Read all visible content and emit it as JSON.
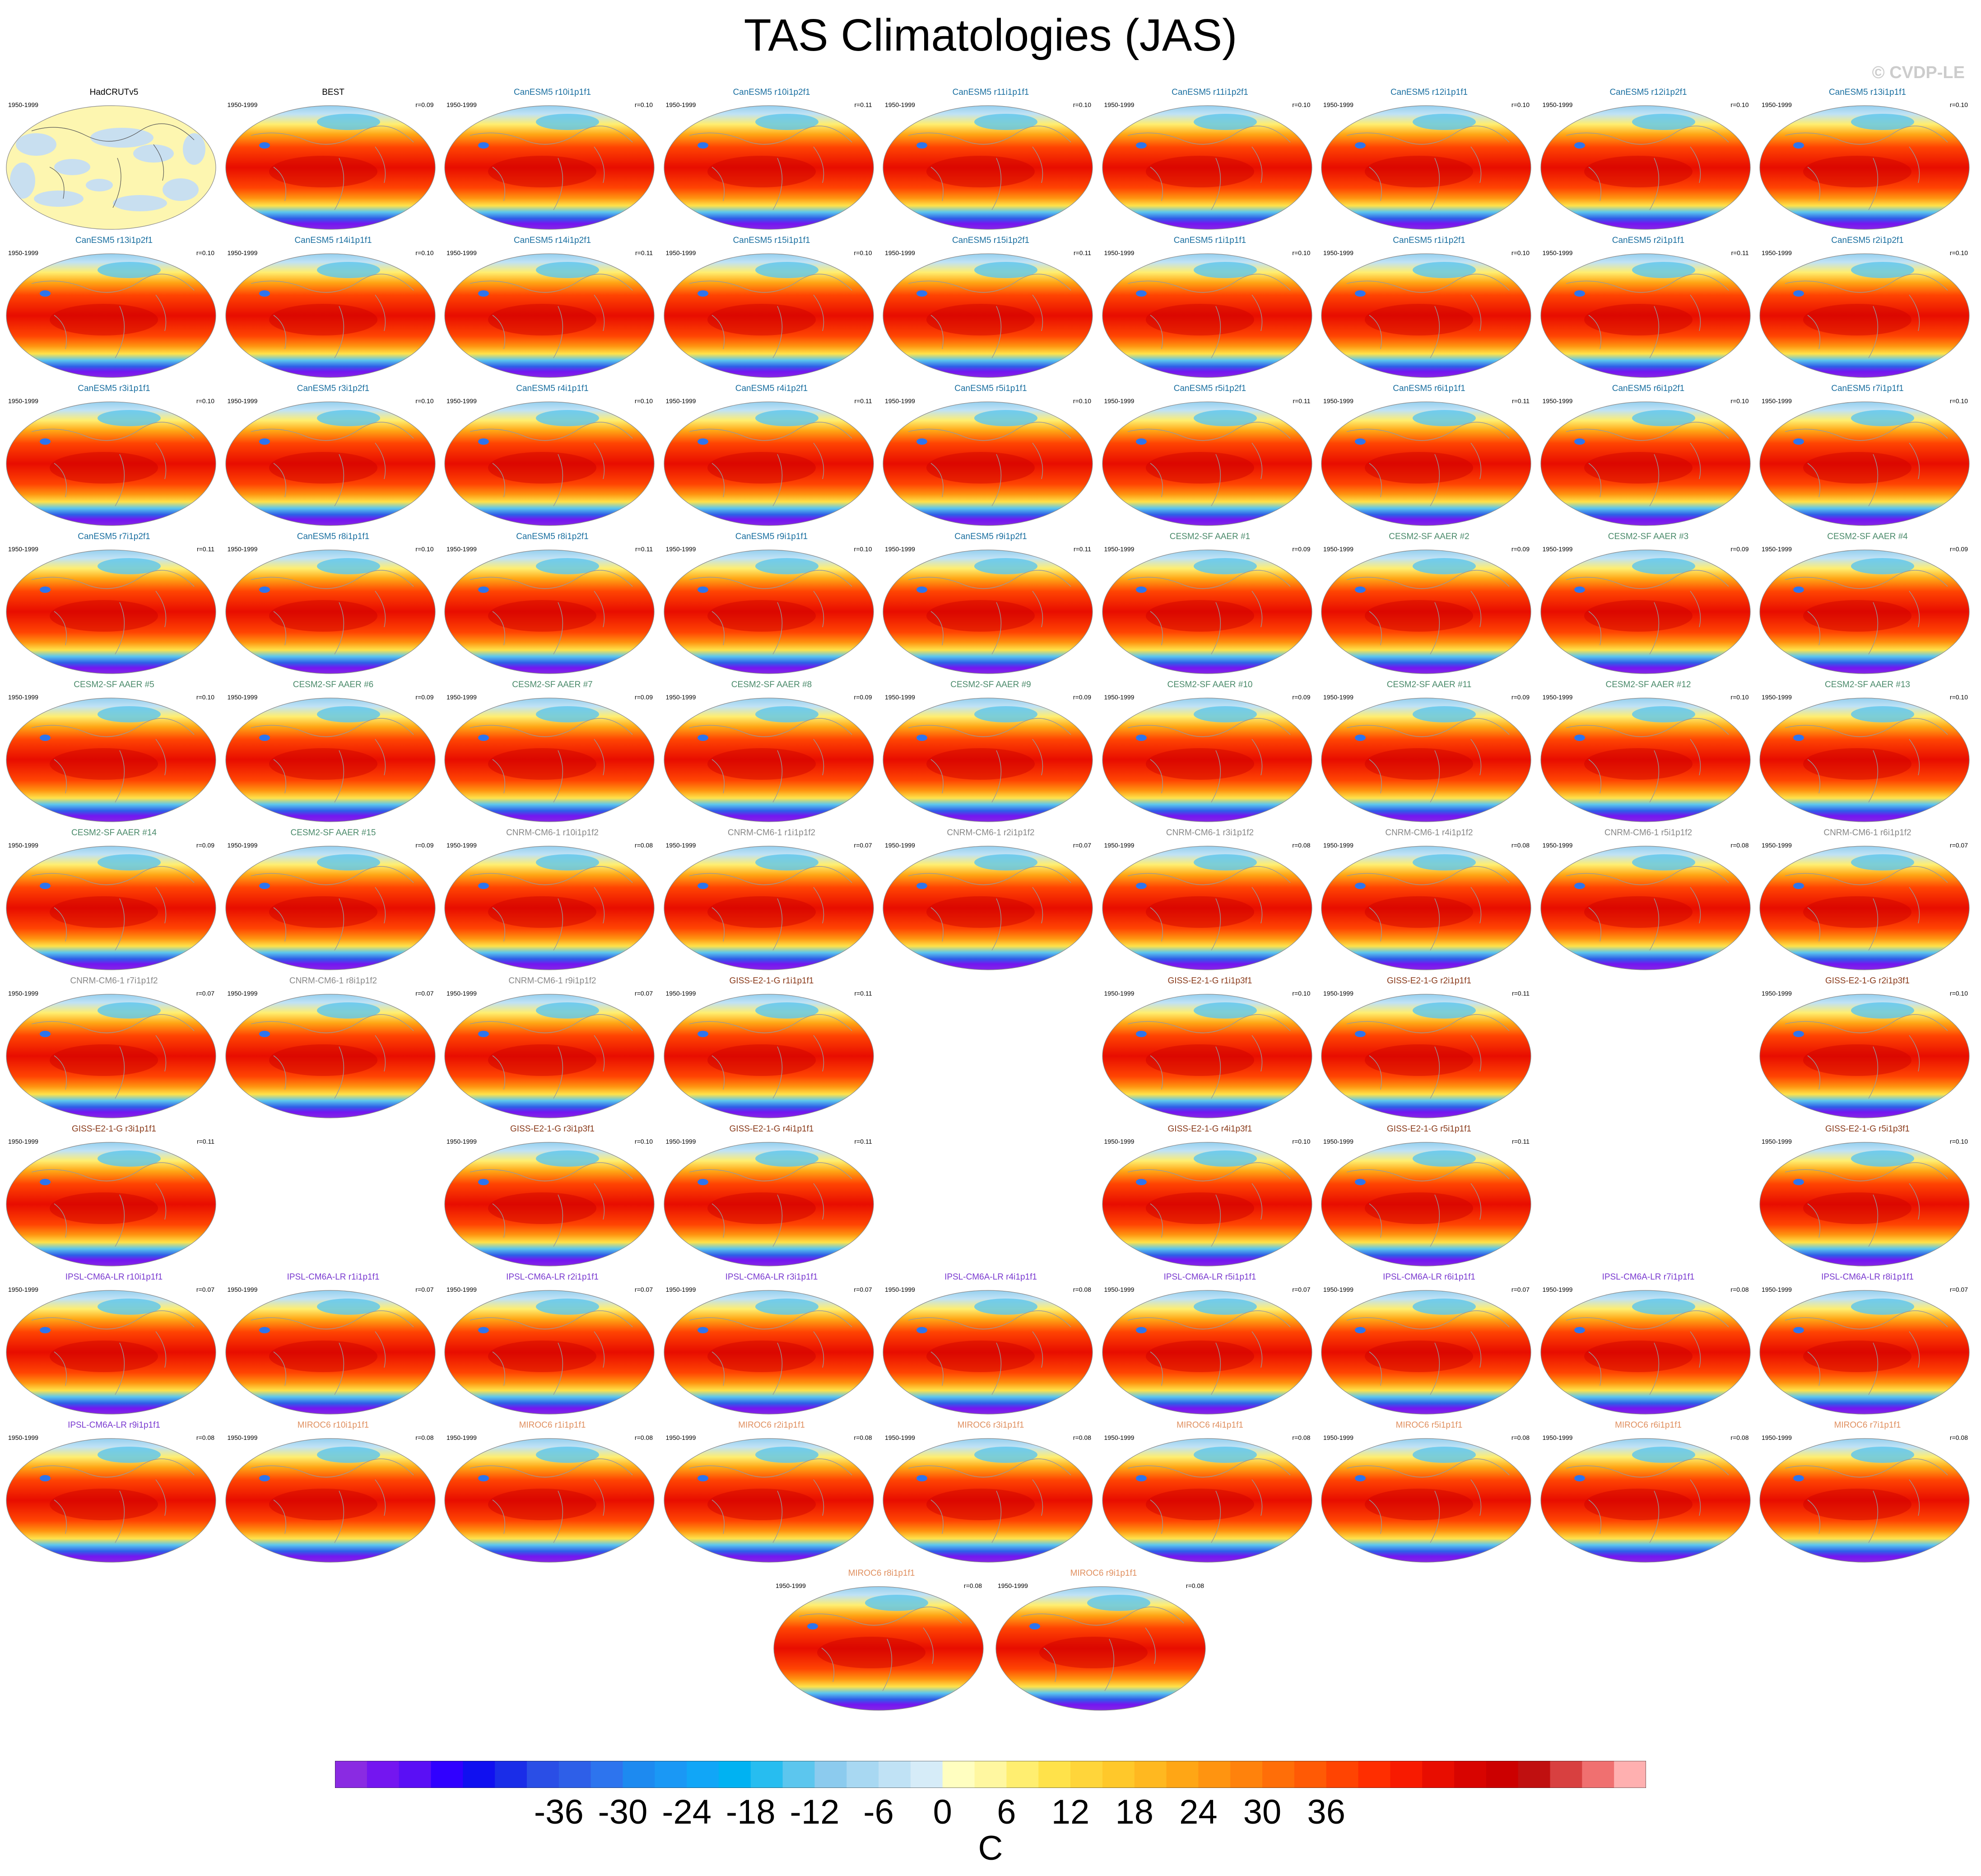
{
  "title": "TAS Climatologies (JAS)",
  "watermark": "© CVDP-LE",
  "colorbar": {
    "units": "C",
    "tick_labels": [
      "-36",
      "-30",
      "-24",
      "-18",
      "-12",
      "-6",
      "0",
      "6",
      "12",
      "18",
      "24",
      "30",
      "36"
    ],
    "colors": [
      "#8a2be2",
      "#7416f0",
      "#5a0ff5",
      "#3000ff",
      "#1010f0",
      "#1a2de8",
      "#2a4ee6",
      "#2e5fe8",
      "#2d74ee",
      "#1d8af0",
      "#1a98f5",
      "#11a6f7",
      "#00b2f2",
      "#27bdf0",
      "#5cc6ee",
      "#8ccbee",
      "#a8d8f2",
      "#c0e2f5",
      "#d6ecf8",
      "#fffec0",
      "#fff7a0",
      "#ffee70",
      "#ffe24a",
      "#ffd53a",
      "#ffc82a",
      "#ffb820",
      "#ffa615",
      "#ff9410",
      "#ff820c",
      "#ff6e08",
      "#ff5a05",
      "#ff4402",
      "#ff2e00",
      "#f81a00",
      "#e80d00",
      "#d80400",
      "#cc0000",
      "#c01010",
      "#d84040",
      "#f07070",
      "#ffb0b0"
    ]
  },
  "panels": [
    {
      "name": "HadCRUTv5",
      "period": "1950-1999",
      "r": "",
      "group": "obs",
      "style": "obs"
    },
    {
      "name": "BEST",
      "period": "1950-1999",
      "r": "r=0.09",
      "group": "obs",
      "style": "full"
    },
    {
      "name": "CanESM5 r10i1p1f1",
      "period": "1950-1999",
      "r": "r=0.10",
      "group": "canesm",
      "style": "full"
    },
    {
      "name": "CanESM5 r10i1p2f1",
      "period": "1950-1999",
      "r": "r=0.11",
      "group": "canesm",
      "style": "full"
    },
    {
      "name": "CanESM5 r11i1p1f1",
      "period": "1950-1999",
      "r": "r=0.10",
      "group": "canesm",
      "style": "full"
    },
    {
      "name": "CanESM5 r11i1p2f1",
      "period": "1950-1999",
      "r": "r=0.10",
      "group": "canesm",
      "style": "full"
    },
    {
      "name": "CanESM5 r12i1p1f1",
      "period": "1950-1999",
      "r": "r=0.10",
      "group": "canesm",
      "style": "full"
    },
    {
      "name": "CanESM5 r12i1p2f1",
      "period": "1950-1999",
      "r": "r=0.10",
      "group": "canesm",
      "style": "full"
    },
    {
      "name": "CanESM5 r13i1p1f1",
      "period": "1950-1999",
      "r": "r=0.10",
      "group": "canesm",
      "style": "full"
    },
    {
      "name": "CanESM5 r13i1p2f1",
      "period": "1950-1999",
      "r": "r=0.10",
      "group": "canesm",
      "style": "full"
    },
    {
      "name": "CanESM5 r14i1p1f1",
      "period": "1950-1999",
      "r": "r=0.10",
      "group": "canesm",
      "style": "full"
    },
    {
      "name": "CanESM5 r14i1p2f1",
      "period": "1950-1999",
      "r": "r=0.11",
      "group": "canesm",
      "style": "full"
    },
    {
      "name": "CanESM5 r15i1p1f1",
      "period": "1950-1999",
      "r": "r=0.10",
      "group": "canesm",
      "style": "full"
    },
    {
      "name": "CanESM5 r15i1p2f1",
      "period": "1950-1999",
      "r": "r=0.11",
      "group": "canesm",
      "style": "full"
    },
    {
      "name": "CanESM5 r1i1p1f1",
      "period": "1950-1999",
      "r": "r=0.10",
      "group": "canesm",
      "style": "full"
    },
    {
      "name": "CanESM5 r1i1p2f1",
      "period": "1950-1999",
      "r": "r=0.10",
      "group": "canesm",
      "style": "full"
    },
    {
      "name": "CanESM5 r2i1p1f1",
      "period": "1950-1999",
      "r": "r=0.11",
      "group": "canesm",
      "style": "full"
    },
    {
      "name": "CanESM5 r2i1p2f1",
      "period": "1950-1999",
      "r": "r=0.10",
      "group": "canesm",
      "style": "full"
    },
    {
      "name": "CanESM5 r3i1p1f1",
      "period": "1950-1999",
      "r": "r=0.10",
      "group": "canesm",
      "style": "full"
    },
    {
      "name": "CanESM5 r3i1p2f1",
      "period": "1950-1999",
      "r": "r=0.10",
      "group": "canesm",
      "style": "full"
    },
    {
      "name": "CanESM5 r4i1p1f1",
      "period": "1950-1999",
      "r": "r=0.10",
      "group": "canesm",
      "style": "full"
    },
    {
      "name": "CanESM5 r4i1p2f1",
      "period": "1950-1999",
      "r": "r=0.11",
      "group": "canesm",
      "style": "full"
    },
    {
      "name": "CanESM5 r5i1p1f1",
      "period": "1950-1999",
      "r": "r=0.10",
      "group": "canesm",
      "style": "full"
    },
    {
      "name": "CanESM5 r5i1p2f1",
      "period": "1950-1999",
      "r": "r=0.11",
      "group": "canesm",
      "style": "full"
    },
    {
      "name": "CanESM5 r6i1p1f1",
      "period": "1950-1999",
      "r": "r=0.11",
      "group": "canesm",
      "style": "full"
    },
    {
      "name": "CanESM5 r6i1p2f1",
      "period": "1950-1999",
      "r": "r=0.10",
      "group": "canesm",
      "style": "full"
    },
    {
      "name": "CanESM5 r7i1p1f1",
      "period": "1950-1999",
      "r": "r=0.10",
      "group": "canesm",
      "style": "full"
    },
    {
      "name": "CanESM5 r7i1p2f1",
      "period": "1950-1999",
      "r": "r=0.11",
      "group": "canesm",
      "style": "full"
    },
    {
      "name": "CanESM5 r8i1p1f1",
      "period": "1950-1999",
      "r": "r=0.10",
      "group": "canesm",
      "style": "full"
    },
    {
      "name": "CanESM5 r8i1p2f1",
      "period": "1950-1999",
      "r": "r=0.11",
      "group": "canesm",
      "style": "full"
    },
    {
      "name": "CanESM5 r9i1p1f1",
      "period": "1950-1999",
      "r": "r=0.10",
      "group": "canesm",
      "style": "full"
    },
    {
      "name": "CanESM5 r9i1p2f1",
      "period": "1950-1999",
      "r": "r=0.11",
      "group": "canesm",
      "style": "full"
    },
    {
      "name": "CESM2-SF AAER #1",
      "period": "1950-1999",
      "r": "r=0.09",
      "group": "cesm",
      "style": "full"
    },
    {
      "name": "CESM2-SF AAER #2",
      "period": "1950-1999",
      "r": "r=0.09",
      "group": "cesm",
      "style": "full"
    },
    {
      "name": "CESM2-SF AAER #3",
      "period": "1950-1999",
      "r": "r=0.09",
      "group": "cesm",
      "style": "full"
    },
    {
      "name": "CESM2-SF AAER #4",
      "period": "1950-1999",
      "r": "r=0.09",
      "group": "cesm",
      "style": "full"
    },
    {
      "name": "CESM2-SF AAER #5",
      "period": "1950-1999",
      "r": "r=0.10",
      "group": "cesm",
      "style": "full"
    },
    {
      "name": "CESM2-SF AAER #6",
      "period": "1950-1999",
      "r": "r=0.09",
      "group": "cesm",
      "style": "full"
    },
    {
      "name": "CESM2-SF AAER #7",
      "period": "1950-1999",
      "r": "r=0.09",
      "group": "cesm",
      "style": "full"
    },
    {
      "name": "CESM2-SF AAER #8",
      "period": "1950-1999",
      "r": "r=0.09",
      "group": "cesm",
      "style": "full"
    },
    {
      "name": "CESM2-SF AAER #9",
      "period": "1950-1999",
      "r": "r=0.09",
      "group": "cesm",
      "style": "full"
    },
    {
      "name": "CESM2-SF AAER #10",
      "period": "1950-1999",
      "r": "r=0.09",
      "group": "cesm",
      "style": "full"
    },
    {
      "name": "CESM2-SF AAER #11",
      "period": "1950-1999",
      "r": "r=0.09",
      "group": "cesm",
      "style": "full"
    },
    {
      "name": "CESM2-SF AAER #12",
      "period": "1950-1999",
      "r": "r=0.10",
      "group": "cesm",
      "style": "full"
    },
    {
      "name": "CESM2-SF AAER #13",
      "period": "1950-1999",
      "r": "r=0.10",
      "group": "cesm",
      "style": "full"
    },
    {
      "name": "CESM2-SF AAER #14",
      "period": "1950-1999",
      "r": "r=0.09",
      "group": "cesm",
      "style": "full"
    },
    {
      "name": "CESM2-SF AAER #15",
      "period": "1950-1999",
      "r": "r=0.09",
      "group": "cesm",
      "style": "full"
    },
    {
      "name": "CNRM-CM6-1 r10i1p1f2",
      "period": "1950-1999",
      "r": "r=0.08",
      "group": "cnrm",
      "style": "full"
    },
    {
      "name": "CNRM-CM6-1 r1i1p1f2",
      "period": "1950-1999",
      "r": "r=0.07",
      "group": "cnrm",
      "style": "full"
    },
    {
      "name": "CNRM-CM6-1 r2i1p1f2",
      "period": "1950-1999",
      "r": "r=0.07",
      "group": "cnrm",
      "style": "full"
    },
    {
      "name": "CNRM-CM6-1 r3i1p1f2",
      "period": "1950-1999",
      "r": "r=0.08",
      "group": "cnrm",
      "style": "full"
    },
    {
      "name": "CNRM-CM6-1 r4i1p1f2",
      "period": "1950-1999",
      "r": "r=0.08",
      "group": "cnrm",
      "style": "full"
    },
    {
      "name": "CNRM-CM6-1 r5i1p1f2",
      "period": "1950-1999",
      "r": "r=0.08",
      "group": "cnrm",
      "style": "full"
    },
    {
      "name": "CNRM-CM6-1 r6i1p1f2",
      "period": "1950-1999",
      "r": "r=0.07",
      "group": "cnrm",
      "style": "full"
    },
    {
      "name": "CNRM-CM6-1 r7i1p1f2",
      "period": "1950-1999",
      "r": "r=0.07",
      "group": "cnrm",
      "style": "full"
    },
    {
      "name": "CNRM-CM6-1 r8i1p1f2",
      "period": "1950-1999",
      "r": "r=0.07",
      "group": "cnrm",
      "style": "full"
    },
    {
      "name": "CNRM-CM6-1 r9i1p1f2",
      "period": "1950-1999",
      "r": "r=0.07",
      "group": "cnrm",
      "style": "full"
    },
    {
      "name": "GISS-E2-1-G r1i1p1f1",
      "period": "1950-1999",
      "r": "r=0.11",
      "group": "giss",
      "style": "full"
    },
    null,
    {
      "name": "GISS-E2-1-G r1i1p3f1",
      "period": "1950-1999",
      "r": "r=0.10",
      "group": "giss",
      "style": "full"
    },
    {
      "name": "GISS-E2-1-G r2i1p1f1",
      "period": "1950-1999",
      "r": "r=0.11",
      "group": "giss",
      "style": "full"
    },
    null,
    {
      "name": "GISS-E2-1-G r2i1p3f1",
      "period": "1950-1999",
      "r": "r=0.10",
      "group": "giss",
      "style": "full"
    },
    {
      "name": "GISS-E2-1-G r3i1p1f1",
      "period": "1950-1999",
      "r": "r=0.11",
      "group": "giss",
      "style": "full"
    },
    null,
    {
      "name": "GISS-E2-1-G r3i1p3f1",
      "period": "1950-1999",
      "r": "r=0.10",
      "group": "giss",
      "style": "full"
    },
    {
      "name": "GISS-E2-1-G r4i1p1f1",
      "period": "1950-1999",
      "r": "r=0.11",
      "group": "giss",
      "style": "full"
    },
    null,
    {
      "name": "GISS-E2-1-G r4i1p3f1",
      "period": "1950-1999",
      "r": "r=0.10",
      "group": "giss",
      "style": "full"
    },
    {
      "name": "GISS-E2-1-G r5i1p1f1",
      "period": "1950-1999",
      "r": "r=0.11",
      "group": "giss",
      "style": "full"
    },
    null,
    {
      "name": "GISS-E2-1-G r5i1p3f1",
      "period": "1950-1999",
      "r": "r=0.10",
      "group": "giss",
      "style": "full"
    },
    {
      "name": "IPSL-CM6A-LR r10i1p1f1",
      "period": "1950-1999",
      "r": "r=0.07",
      "group": "ipsl",
      "style": "full"
    },
    {
      "name": "IPSL-CM6A-LR r1i1p1f1",
      "period": "1950-1999",
      "r": "r=0.07",
      "group": "ipsl",
      "style": "full"
    },
    {
      "name": "IPSL-CM6A-LR r2i1p1f1",
      "period": "1950-1999",
      "r": "r=0.07",
      "group": "ipsl",
      "style": "full"
    },
    {
      "name": "IPSL-CM6A-LR r3i1p1f1",
      "period": "1950-1999",
      "r": "r=0.07",
      "group": "ipsl",
      "style": "full"
    },
    {
      "name": "IPSL-CM6A-LR r4i1p1f1",
      "period": "1950-1999",
      "r": "r=0.08",
      "group": "ipsl",
      "style": "full"
    },
    {
      "name": "IPSL-CM6A-LR r5i1p1f1",
      "period": "1950-1999",
      "r": "r=0.07",
      "group": "ipsl",
      "style": "full"
    },
    {
      "name": "IPSL-CM6A-LR r6i1p1f1",
      "period": "1950-1999",
      "r": "r=0.07",
      "group": "ipsl",
      "style": "full"
    },
    {
      "name": "IPSL-CM6A-LR r7i1p1f1",
      "period": "1950-1999",
      "r": "r=0.08",
      "group": "ipsl",
      "style": "full"
    },
    {
      "name": "IPSL-CM6A-LR r8i1p1f1",
      "period": "1950-1999",
      "r": "r=0.07",
      "group": "ipsl",
      "style": "full"
    },
    {
      "name": "IPSL-CM6A-LR r9i1p1f1",
      "period": "1950-1999",
      "r": "r=0.08",
      "group": "ipsl",
      "style": "full"
    },
    {
      "name": "MIROC6 r10i1p1f1",
      "period": "1950-1999",
      "r": "r=0.08",
      "group": "miroc",
      "style": "full"
    },
    {
      "name": "MIROC6 r1i1p1f1",
      "period": "1950-1999",
      "r": "r=0.08",
      "group": "miroc",
      "style": "full"
    },
    {
      "name": "MIROC6 r2i1p1f1",
      "period": "1950-1999",
      "r": "r=0.08",
      "group": "miroc",
      "style": "full"
    },
    {
      "name": "MIROC6 r3i1p1f1",
      "period": "1950-1999",
      "r": "r=0.08",
      "group": "miroc",
      "style": "full"
    },
    {
      "name": "MIROC6 r4i1p1f1",
      "period": "1950-1999",
      "r": "r=0.08",
      "group": "miroc",
      "style": "full"
    },
    {
      "name": "MIROC6 r5i1p1f1",
      "period": "1950-1999",
      "r": "r=0.08",
      "group": "miroc",
      "style": "full"
    },
    {
      "name": "MIROC6 r6i1p1f1",
      "period": "1950-1999",
      "r": "r=0.08",
      "group": "miroc",
      "style": "full"
    },
    {
      "name": "MIROC6 r7i1p1f1",
      "period": "1950-1999",
      "r": "r=0.08",
      "group": "miroc",
      "style": "full"
    }
  ],
  "last_row_panels": [
    {
      "name": "MIROC6 r8i1p1f1",
      "period": "1950-1999",
      "r": "r=0.08",
      "group": "miroc",
      "style": "full"
    },
    {
      "name": "MIROC6 r9i1p1f1",
      "period": "1950-1999",
      "r": "r=0.08",
      "group": "miroc",
      "style": "full"
    }
  ],
  "group_colors": {
    "obs": "#000000",
    "canesm": "#1a6fa0",
    "cesm": "#4a8a6a",
    "cnrm": "#888888",
    "giss": "#8a3a1a",
    "ipsl": "#7a3ad0",
    "miroc": "#e09060"
  }
}
